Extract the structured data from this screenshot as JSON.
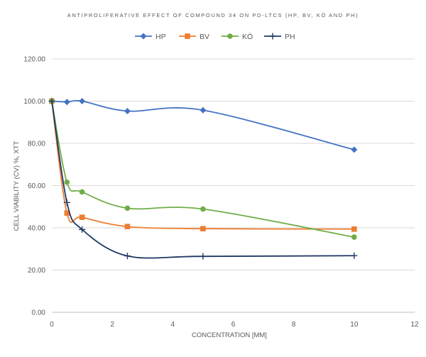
{
  "chart_data": {
    "type": "line",
    "title": "ANTIPROLIFERATIVE EFFECT OF COMPOUND 34 ON PD-LTCS (HP, BV, KÖ AND PH)",
    "xlabel": "CONCENTRATION [MM]",
    "ylabel": "CELL VIABILITY (CV) %, XTT",
    "xlim": [
      0,
      12
    ],
    "ylim": [
      0,
      120
    ],
    "x_ticks": [
      "0",
      "2",
      "4",
      "6",
      "8",
      "10",
      "12"
    ],
    "y_ticks": [
      "0.00",
      "20.00",
      "40.00",
      "60.00",
      "80.00",
      "100.00",
      "120.00"
    ],
    "grid": "horizontal",
    "legend_position": "top",
    "series": [
      {
        "name": "HP",
        "color": "#4472c4",
        "marker": "diamond",
        "x": [
          0,
          0.5,
          1,
          2.5,
          5,
          10
        ],
        "y": [
          100,
          99.6,
          100,
          95.3,
          95.7,
          77
        ]
      },
      {
        "name": "BV",
        "color": "#ed7d31",
        "marker": "square",
        "x": [
          0,
          0.5,
          1,
          2.5,
          5,
          10
        ],
        "y": [
          100,
          47,
          45,
          40.6,
          39.6,
          39.4
        ]
      },
      {
        "name": "KÖ",
        "color": "#70ad47",
        "marker": "circle",
        "x": [
          0,
          0.5,
          1,
          2.5,
          5,
          10
        ],
        "y": [
          100,
          61.6,
          57,
          49.3,
          48.9,
          35.6
        ]
      },
      {
        "name": "PH",
        "color": "#1f3864",
        "marker": "plus",
        "x": [
          0,
          0.5,
          1,
          2.5,
          5,
          10
        ],
        "y": [
          100,
          52,
          39.2,
          26.7,
          26.5,
          26.8
        ]
      }
    ]
  }
}
